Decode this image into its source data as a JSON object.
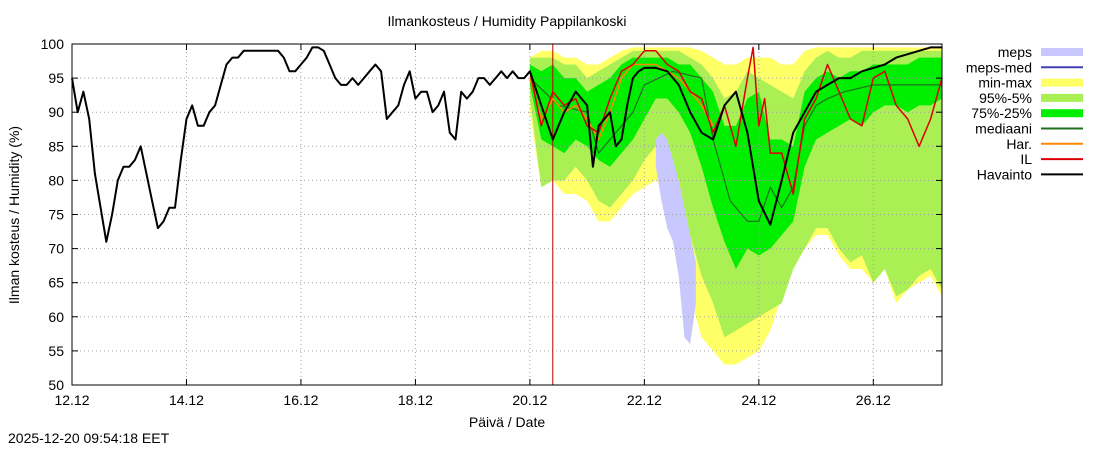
{
  "chart_data": {
    "type": "area",
    "title": "Ilmankosteus / Humidity  Pappilankoski",
    "xlabel": "Päivä / Date",
    "ylabel": "Ilman kosteus / Humidity (%)",
    "ylim": [
      50,
      100
    ],
    "y_ticks": [
      50,
      55,
      60,
      65,
      70,
      75,
      80,
      85,
      90,
      95,
      100
    ],
    "xlim": [
      0,
      15.2
    ],
    "x_ticks": [
      {
        "x": 0,
        "label": "12.12"
      },
      {
        "x": 2,
        "label": "14.12"
      },
      {
        "x": 4,
        "label": "16.12"
      },
      {
        "x": 6,
        "label": "18.12"
      },
      {
        "x": 8,
        "label": "20.12"
      },
      {
        "x": 10,
        "label": "22.12"
      },
      {
        "x": 12,
        "label": "24.12"
      },
      {
        "x": 14,
        "label": "26.12"
      }
    ],
    "x_units": "days since 12.12 00:00",
    "now_x": 8.4,
    "grid": true,
    "legend": {
      "position": "right",
      "entries": [
        {
          "key": "meps",
          "label": "meps",
          "color": "#c8c8ff",
          "kind": "band"
        },
        {
          "key": "meps_med",
          "label": "meps-med",
          "color": "#4040b0",
          "kind": "line"
        },
        {
          "key": "min_max",
          "label": "min-max",
          "color": "#ffff66",
          "kind": "band"
        },
        {
          "key": "p95_5",
          "label": "95%-5%",
          "color": "#aaf055",
          "kind": "band"
        },
        {
          "key": "p75_25",
          "label": "75%-25%",
          "color": "#00ee00",
          "kind": "band"
        },
        {
          "key": "mediaani",
          "label": "mediaani",
          "color": "#207020",
          "kind": "line"
        },
        {
          "key": "har",
          "label": "Har.",
          "color": "#ff8800",
          "kind": "line"
        },
        {
          "key": "il",
          "label": "IL",
          "color": "#dd0000",
          "kind": "line"
        },
        {
          "key": "havainto",
          "label": "Havainto",
          "color": "#000000",
          "kind": "line"
        }
      ]
    },
    "series": {
      "havainto": {
        "x": [
          0,
          0.1,
          0.2,
          0.3,
          0.4,
          0.5,
          0.6,
          0.7,
          0.8,
          0.9,
          1.0,
          1.1,
          1.2,
          1.3,
          1.4,
          1.5,
          1.6,
          1.7,
          1.8,
          1.9,
          2.0,
          2.1,
          2.2,
          2.3,
          2.4,
          2.5,
          2.6,
          2.7,
          2.8,
          2.9,
          3.0,
          3.1,
          3.2,
          3.3,
          3.4,
          3.5,
          3.6,
          3.7,
          3.8,
          3.9,
          4.0,
          4.1,
          4.2,
          4.3,
          4.4,
          4.5,
          4.6,
          4.7,
          4.8,
          4.9,
          5.0,
          5.1,
          5.2,
          5.3,
          5.4,
          5.5,
          5.6,
          5.7,
          5.8,
          5.9,
          6.0,
          6.1,
          6.2,
          6.3,
          6.4,
          6.5,
          6.6,
          6.7,
          6.8,
          6.9,
          7.0,
          7.1,
          7.2,
          7.3,
          7.4,
          7.5,
          7.6,
          7.7,
          7.8,
          7.9,
          8.0,
          8.2,
          8.4,
          8.5,
          8.6,
          8.8,
          9.0,
          9.1,
          9.2,
          9.4,
          9.5,
          9.6,
          9.7,
          9.8,
          9.9,
          10.0,
          10.2,
          10.4,
          10.6,
          10.8,
          11.0,
          11.2,
          11.4,
          11.6,
          11.8,
          12.0,
          12.2,
          12.4,
          12.6,
          12.8,
          13.0,
          13.2,
          13.4,
          13.6,
          13.8,
          14.0,
          14.2,
          14.4,
          14.6,
          14.8,
          15.0,
          15.2
        ],
        "y": [
          95,
          90,
          93,
          89,
          81,
          76,
          71,
          75,
          80,
          82,
          82,
          83,
          85,
          81,
          77,
          73,
          74,
          76,
          76,
          83,
          89,
          91,
          88,
          88,
          90,
          91,
          94,
          97,
          98,
          98,
          99,
          99,
          99,
          99,
          99,
          99,
          99,
          98,
          96,
          96,
          97,
          98,
          99.5,
          99.5,
          99,
          97,
          95,
          94,
          94,
          95,
          94,
          95,
          96,
          97,
          96,
          89,
          90,
          91,
          94,
          96,
          92,
          93,
          93,
          90,
          91,
          93,
          87,
          86,
          93,
          92,
          93,
          95,
          95,
          94,
          95,
          96,
          95,
          96,
          95,
          95,
          96,
          91,
          86,
          88,
          90,
          93,
          91,
          82,
          88,
          90,
          85,
          86,
          91,
          95,
          96,
          96.5,
          96.5,
          96,
          94,
          90,
          87,
          86,
          91,
          93,
          87,
          77,
          73.5,
          80,
          87,
          90,
          93,
          94,
          95,
          95,
          96,
          96.5,
          97,
          98,
          98.5,
          99,
          99.5,
          99.5
        ]
      },
      "il": {
        "x": [
          8.0,
          8.2,
          8.4,
          8.6,
          8.8,
          9.0,
          9.2,
          9.4,
          9.6,
          9.8,
          10.0,
          10.2,
          10.4,
          10.6,
          10.8,
          11.0,
          11.2,
          11.4,
          11.6,
          11.8,
          11.9,
          12.0,
          12.1,
          12.2,
          12.4,
          12.6,
          12.8,
          13.0,
          13.2,
          13.4,
          13.6,
          13.8,
          14.0,
          14.2,
          14.4,
          14.6,
          14.8,
          15.0,
          15.2
        ],
        "y": [
          96,
          88,
          93,
          91,
          92,
          88,
          87,
          92,
          96,
          97,
          99,
          99,
          97,
          96,
          93,
          92,
          87,
          91,
          85,
          95,
          99.5,
          88,
          92,
          84,
          84,
          78,
          89,
          92,
          97,
          93,
          89,
          88,
          95,
          96,
          91,
          89,
          85,
          89,
          95
        ]
      },
      "har": {
        "x": [
          8.0,
          8.2,
          8.4,
          8.6,
          8.8,
          9.0,
          9.2,
          9.4,
          9.6,
          9.8,
          10.0,
          10.2,
          10.4,
          10.6,
          10.8,
          11.0,
          11.2
        ],
        "y": [
          95,
          89,
          92,
          90,
          91,
          89,
          86,
          90,
          95,
          97,
          97,
          97,
          96,
          95,
          93,
          91,
          88
        ]
      },
      "mediaani": {
        "x": [
          8.0,
          8.5,
          9.0,
          9.2,
          9.4,
          9.6,
          9.8,
          10.0,
          10.5,
          11.0,
          11.2,
          11.5,
          11.8,
          12.0,
          12.2,
          12.4,
          12.6,
          12.8,
          13.0,
          13.2,
          13.5,
          14.0,
          14.5,
          15.0,
          15.2
        ],
        "y": [
          95,
          91,
          90,
          84,
          86,
          88,
          90,
          94,
          96,
          95,
          86,
          77,
          74,
          74,
          79,
          76,
          79,
          88,
          91,
          92,
          93,
          94,
          94,
          94,
          94
        ]
      },
      "p75_25": {
        "x": [
          8.0,
          8.2,
          8.4,
          8.6,
          8.8,
          9.0,
          9.2,
          9.4,
          9.6,
          9.8,
          10.0,
          10.2,
          10.4,
          10.6,
          10.8,
          11.0,
          11.2,
          11.4,
          11.6,
          11.8,
          12.0,
          12.2,
          12.4,
          12.6,
          12.8,
          13.0,
          13.2,
          13.4,
          13.6,
          13.8,
          14.0,
          14.2,
          14.4,
          14.6,
          14.8,
          15.0,
          15.2
        ],
        "upper": [
          97,
          96,
          97,
          95,
          95,
          93,
          94,
          95,
          97,
          98,
          98,
          98,
          98,
          97,
          97,
          95,
          93,
          88,
          88,
          92,
          93,
          86,
          86,
          85,
          93,
          95,
          96,
          95,
          96,
          96,
          97,
          97,
          97,
          97,
          98,
          98,
          98
        ],
        "lower": [
          94,
          86,
          85,
          84,
          86,
          85,
          83,
          82,
          84,
          86,
          89,
          92,
          92,
          90,
          87,
          82,
          76,
          71,
          67,
          70,
          69,
          70,
          72,
          74,
          82,
          86,
          87,
          88,
          89,
          88,
          90,
          91,
          91,
          90,
          91,
          91,
          92
        ]
      },
      "p95_5": {
        "x": [
          8.0,
          8.2,
          8.4,
          8.6,
          8.8,
          9.0,
          9.2,
          9.4,
          9.6,
          9.8,
          10.0,
          10.2,
          10.4,
          10.6,
          10.8,
          11.0,
          11.2,
          11.4,
          11.6,
          11.8,
          12.0,
          12.2,
          12.4,
          12.6,
          12.8,
          13.0,
          13.2,
          13.4,
          13.6,
          13.8,
          14.0,
          14.2,
          14.4,
          14.6,
          14.8,
          15.0,
          15.2
        ],
        "upper": [
          98,
          98,
          98,
          97,
          97,
          95,
          96,
          97,
          98,
          99,
          99,
          99,
          99,
          99,
          98,
          97,
          95,
          92,
          93,
          96,
          95,
          94,
          93,
          92,
          96,
          98,
          99,
          98,
          98,
          99,
          99,
          99,
          99,
          99,
          99,
          99,
          99
        ],
        "lower": [
          92,
          79,
          80,
          80,
          82,
          80,
          77,
          76,
          78,
          80,
          83,
          85,
          83,
          80,
          72,
          66,
          62,
          57,
          58,
          59,
          60,
          61,
          62,
          67,
          70,
          73,
          73,
          70,
          68,
          69,
          65,
          67,
          63,
          64,
          66,
          67,
          64
        ]
      },
      "min_max": {
        "x": [
          8.0,
          8.2,
          8.4,
          8.6,
          8.8,
          9.0,
          9.2,
          9.4,
          9.6,
          9.8,
          10.0,
          10.2,
          10.4,
          10.6,
          10.8,
          11.0,
          11.2,
          11.4,
          11.6,
          11.8,
          12.0,
          12.2,
          12.4,
          12.6,
          12.8,
          13.0,
          13.2,
          13.4,
          13.6,
          13.8,
          14.0,
          14.2,
          14.4,
          14.6,
          14.8,
          15.0,
          15.2
        ],
        "upper": [
          98,
          99,
          99,
          98,
          98,
          97,
          97,
          98,
          99,
          99.5,
          99.5,
          99.5,
          99.5,
          99.5,
          99.5,
          99,
          98,
          97,
          97,
          98,
          98,
          98,
          97,
          97,
          99,
          99.5,
          99.5,
          99.5,
          99.5,
          99.5,
          99.5,
          99.5,
          99.5,
          99.5,
          99.5,
          99.5,
          99.5
        ],
        "lower": [
          90,
          79,
          80,
          78,
          78,
          77,
          74,
          74,
          76,
          78,
          79,
          80,
          78,
          73,
          63,
          57,
          55,
          53,
          53,
          54,
          55,
          58,
          63,
          67,
          70,
          72,
          72,
          69,
          67,
          67,
          65,
          67,
          62,
          64,
          65,
          66,
          63
        ]
      },
      "meps": {
        "x": [
          10.2,
          10.3,
          10.4,
          10.5,
          10.6,
          10.7,
          10.8,
          10.9
        ],
        "upper": [
          86,
          87,
          86,
          83,
          80,
          76,
          72,
          68
        ],
        "lower": [
          82,
          77,
          73,
          71,
          66,
          57,
          56,
          62
        ]
      }
    }
  },
  "timestamp": "2025-12-20 09:54:18 EET"
}
